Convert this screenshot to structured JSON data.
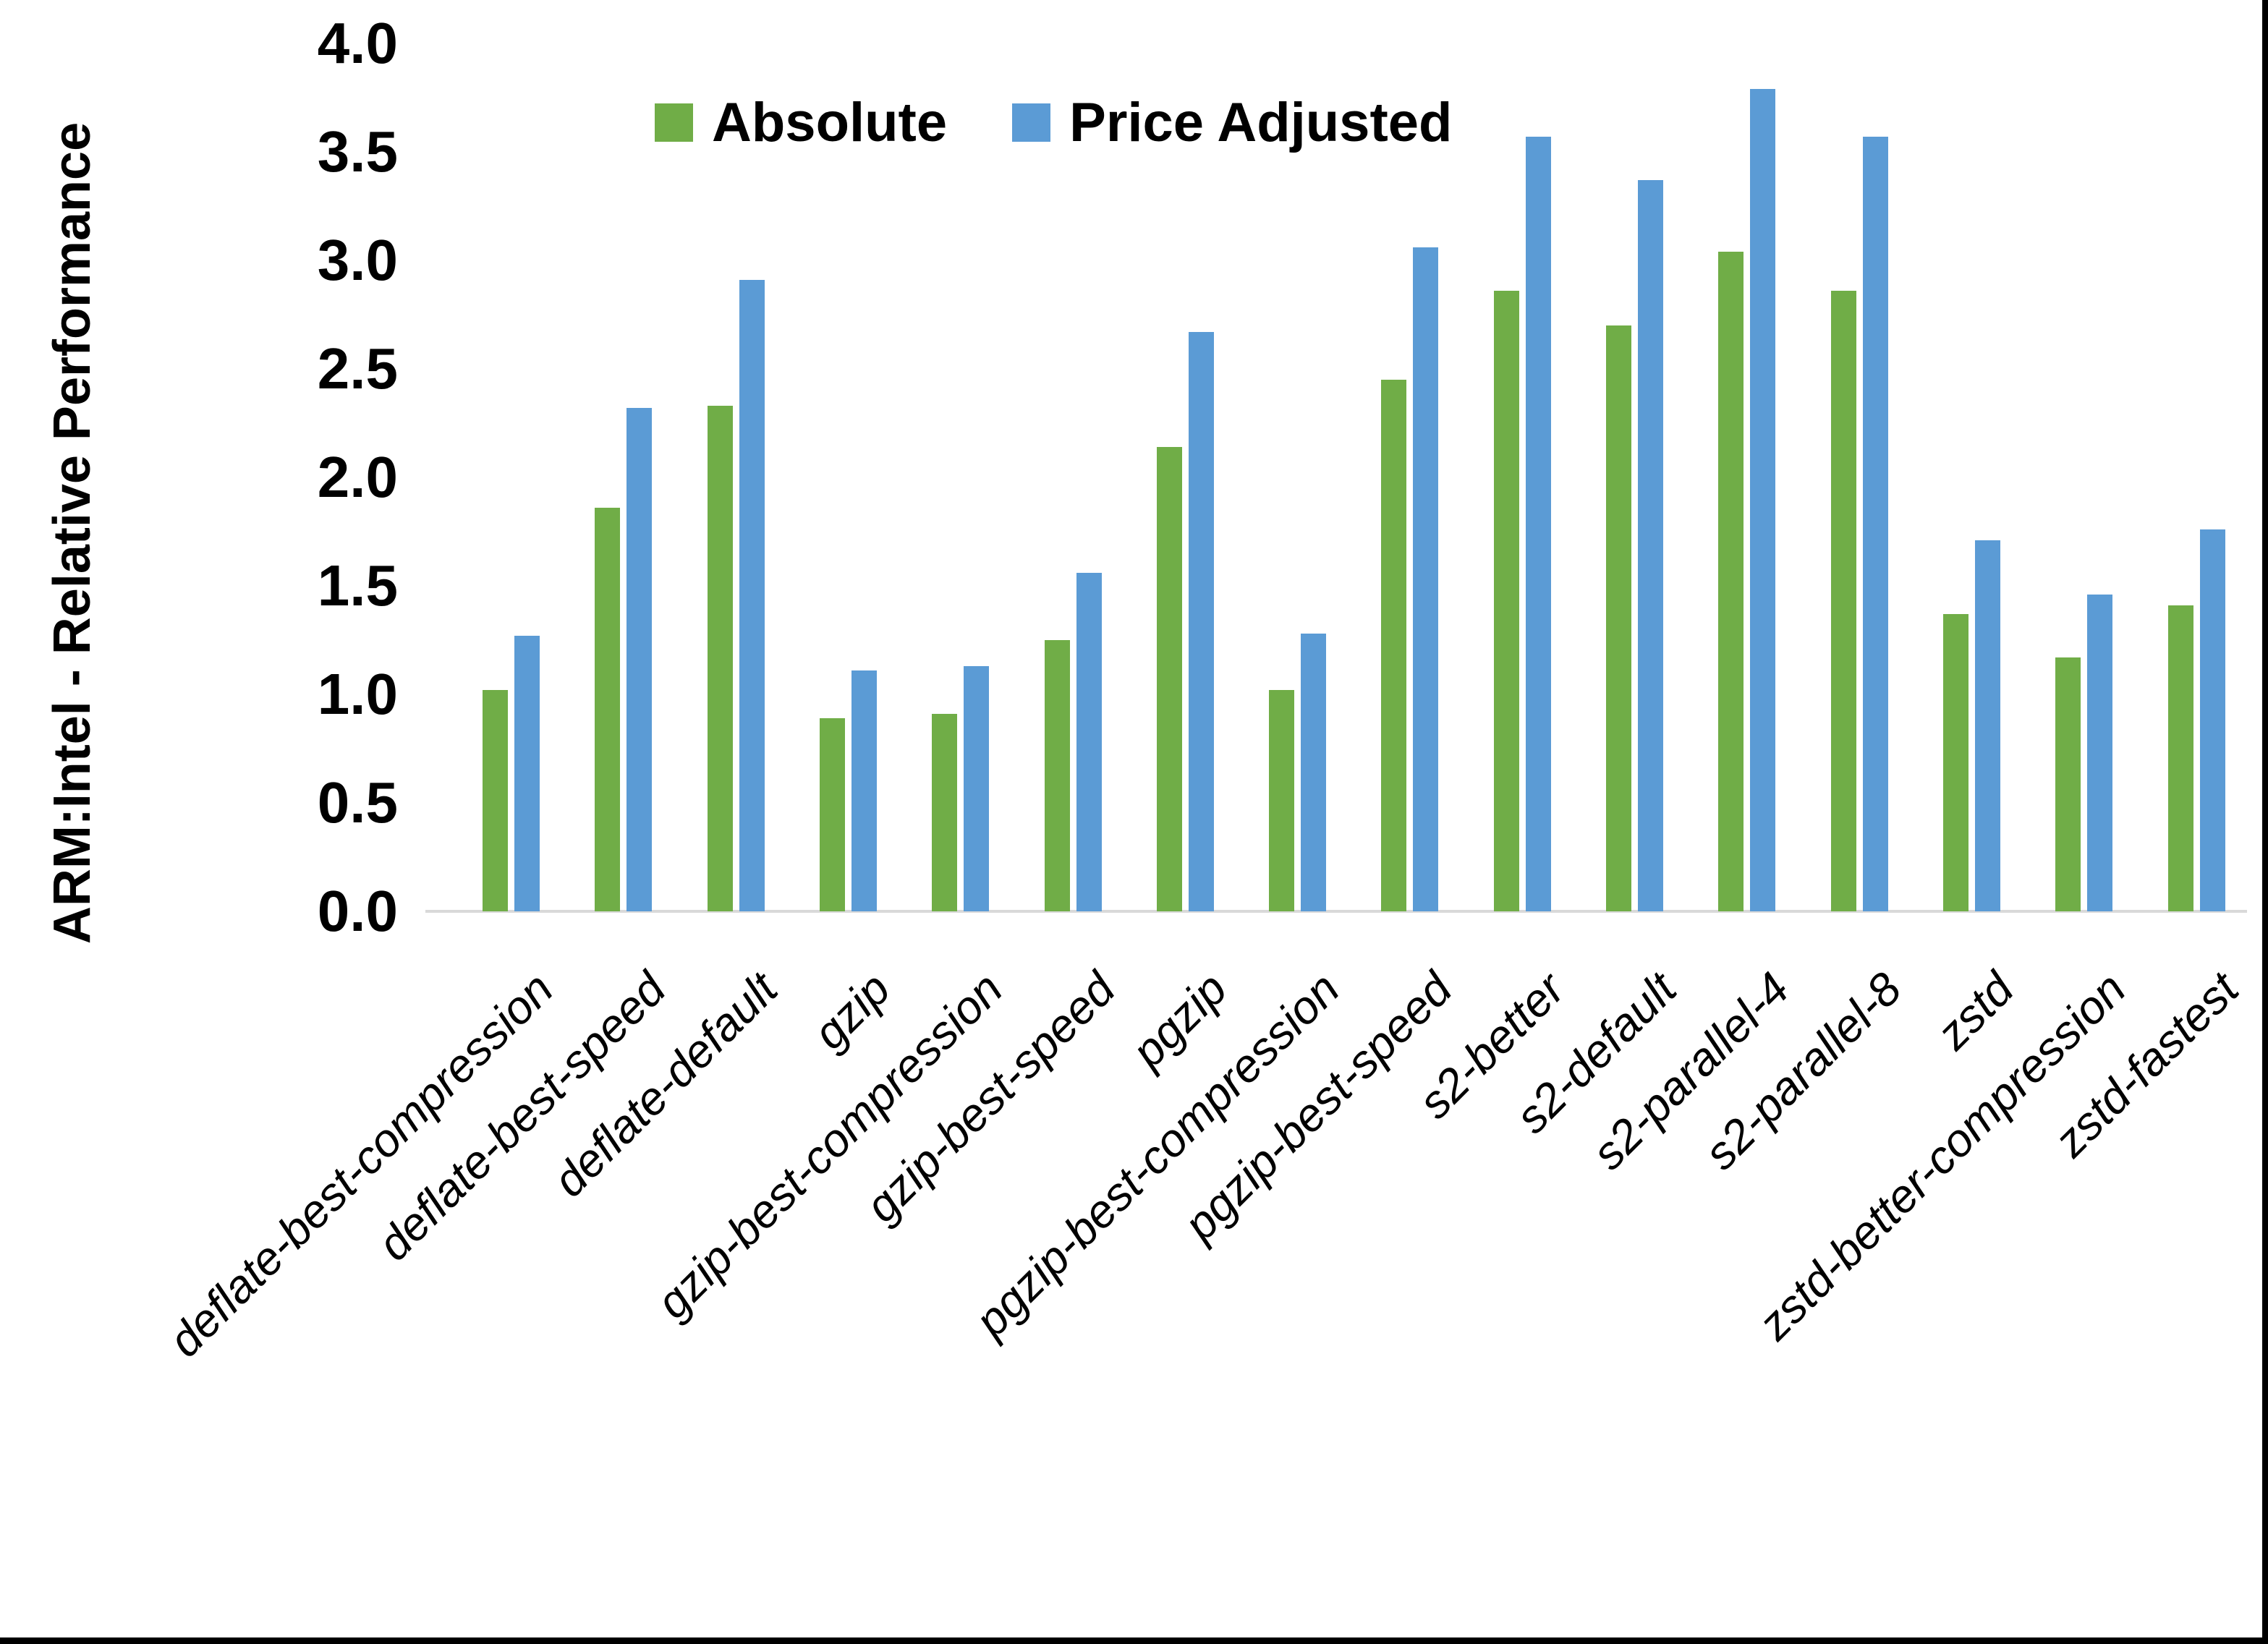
{
  "chart_data": {
    "type": "bar",
    "title": "",
    "xlabel": "",
    "ylabel": "ARM:Intel - Relative Performance",
    "ylim": [
      0.0,
      4.0
    ],
    "ytick_step": 0.5,
    "yticks": [
      "4.0",
      "3.5",
      "3.0",
      "2.5",
      "2.0",
      "1.5",
      "1.0",
      "0.5",
      "0.0"
    ],
    "grid": false,
    "legend_position": "top-center",
    "categories": [
      "deflate-best-compression",
      "deflate-best-speed",
      "deflate-default",
      "gzip",
      "gzip-best-compression",
      "gzip-best-speed",
      "pgzip",
      "pgzip-best-compression",
      "pgzip-best-speed",
      "s2-better",
      "s2-default",
      "s2-parallel-4",
      "s2-parallel-8",
      "zstd",
      "zstd-better-compression",
      "zstd-fastest"
    ],
    "series": [
      {
        "name": "Absolute",
        "color": "#70AD47",
        "values": [
          1.02,
          1.86,
          2.33,
          0.89,
          0.91,
          1.25,
          2.14,
          1.02,
          2.45,
          2.86,
          2.7,
          3.04,
          2.86,
          1.37,
          1.17,
          1.41
        ]
      },
      {
        "name": "Price Adjusted",
        "color": "#5B9BD5",
        "values": [
          1.27,
          2.32,
          2.91,
          1.11,
          1.13,
          1.56,
          2.67,
          1.28,
          3.06,
          3.57,
          3.37,
          3.79,
          3.57,
          1.71,
          1.46,
          1.76
        ]
      }
    ]
  },
  "colors": {
    "axis_line": "#D9D9D9",
    "text": "#000000",
    "background": "#ffffff",
    "page_border": "#000000"
  }
}
